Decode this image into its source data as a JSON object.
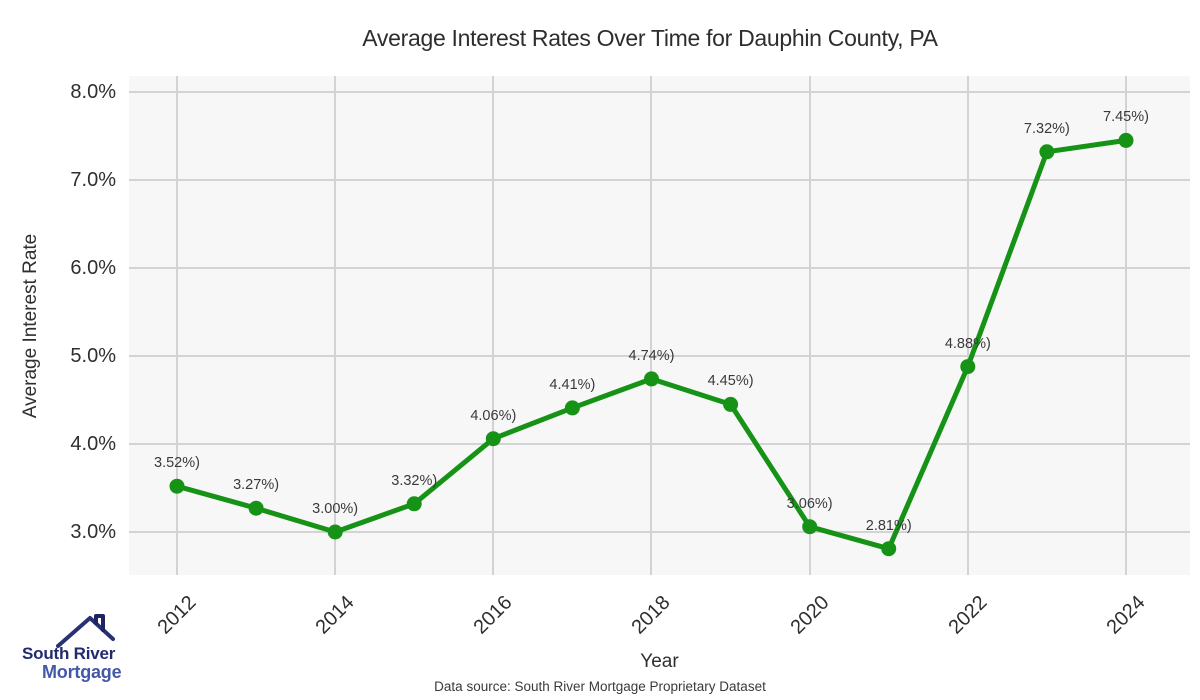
{
  "page": {
    "title": "Average Interest Rates Over Time for Dauphin County, PA",
    "footer": "Data source: South River Mortgage Proprietary Dataset"
  },
  "logo": {
    "line1": "South River",
    "line2": "Mortgage"
  },
  "chart_data": {
    "type": "line",
    "title": "Average Interest Rates Over Time for Dauphin County, PA",
    "xlabel": "Year",
    "ylabel": "Average Interest Rate",
    "x": [
      2012,
      2013,
      2014,
      2015,
      2016,
      2017,
      2018,
      2019,
      2020,
      2021,
      2022,
      2023,
      2024
    ],
    "values": [
      3.52,
      3.27,
      3.0,
      3.32,
      4.06,
      4.41,
      4.74,
      4.45,
      3.06,
      2.81,
      4.88,
      7.32,
      7.45
    ],
    "point_labels": [
      "3.52%)",
      "3.27%)",
      "3.00%)",
      "3.32%)",
      "4.06%)",
      "4.41%)",
      "4.74%)",
      "4.45%)",
      "3.06%)",
      "2.81%)",
      "4.88%)",
      "7.32%)",
      "7.45%)"
    ],
    "xticks": [
      2012,
      2014,
      2016,
      2018,
      2020,
      2022,
      2024
    ],
    "yticks": {
      "values": [
        3,
        4,
        5,
        6,
        7,
        8
      ],
      "labels": [
        "3.0%",
        "4.0%",
        "5.0%",
        "6.0%",
        "7.0%",
        "8.0%"
      ]
    },
    "ylim": [
      2.51,
      8.18
    ],
    "grid": true,
    "legend_position": "none",
    "line_color": "#169316",
    "marker_color": "#169316",
    "plot_bg": "#f7f7f7",
    "grid_color": "#d3d3d3"
  }
}
